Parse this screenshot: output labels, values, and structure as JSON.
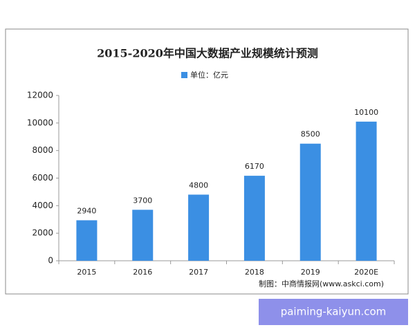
{
  "chart_data": {
    "type": "bar",
    "title": "2015-2020年中国大数据产业规模统计预测",
    "categories": [
      "2015",
      "2016",
      "2017",
      "2018",
      "2019",
      "2020E"
    ],
    "series": [
      {
        "name": "单位：亿元",
        "color": "#3b8fe3",
        "values": [
          2940,
          3700,
          4800,
          6170,
          8500,
          10100
        ]
      }
    ],
    "ylim": [
      0,
      12000
    ],
    "yticks": [
      0,
      2000,
      4000,
      6000,
      8000,
      10000,
      12000
    ],
    "grid": false,
    "legend": "top",
    "source": "制图：中商情报网(www.askci.com)"
  },
  "watermark": "paiming-kaiyun.com"
}
